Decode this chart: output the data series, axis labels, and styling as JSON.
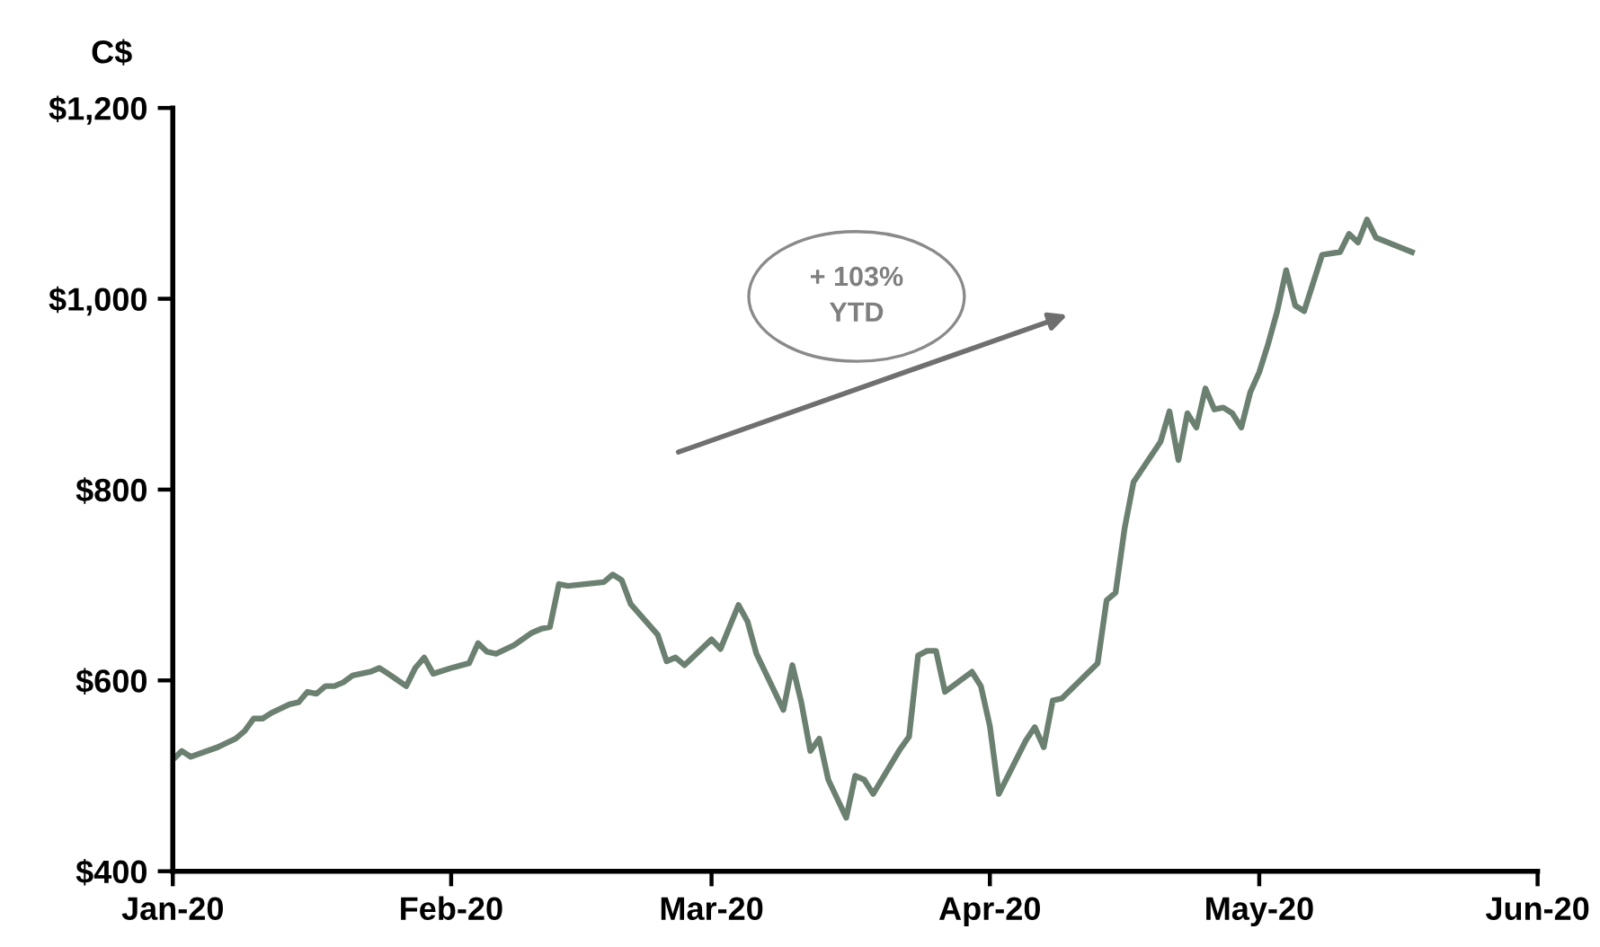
{
  "chart_data": {
    "type": "line",
    "ylabel": "C$",
    "x": [
      "2020-01-01",
      "2020-01-02",
      "2020-01-03",
      "2020-01-06",
      "2020-01-08",
      "2020-01-09",
      "2020-01-10",
      "2020-01-11",
      "2020-01-12",
      "2020-01-14",
      "2020-01-15",
      "2020-01-16",
      "2020-01-17",
      "2020-01-18",
      "2020-01-19",
      "2020-01-20",
      "2020-01-21",
      "2020-01-23",
      "2020-01-24",
      "2020-01-25",
      "2020-01-27",
      "2020-01-28",
      "2020-01-29",
      "2020-01-30",
      "2020-02-01",
      "2020-02-03",
      "2020-02-04",
      "2020-02-05",
      "2020-02-06",
      "2020-02-08",
      "2020-02-10",
      "2020-02-11",
      "2020-02-12",
      "2020-02-13",
      "2020-02-14",
      "2020-02-18",
      "2020-02-19",
      "2020-02-20",
      "2020-02-21",
      "2020-02-24",
      "2020-02-25",
      "2020-02-26",
      "2020-02-27",
      "2020-03-01",
      "2020-03-02",
      "2020-03-04",
      "2020-03-05",
      "2020-03-06",
      "2020-03-09",
      "2020-03-10",
      "2020-03-11",
      "2020-03-12",
      "2020-03-13",
      "2020-03-14",
      "2020-03-16",
      "2020-03-17",
      "2020-03-18",
      "2020-03-19",
      "2020-03-22",
      "2020-03-23",
      "2020-03-24",
      "2020-03-25",
      "2020-03-26",
      "2020-03-27",
      "2020-03-30",
      "2020-03-31",
      "2020-04-01",
      "2020-04-02",
      "2020-04-05",
      "2020-04-06",
      "2020-04-07",
      "2020-04-08",
      "2020-04-09",
      "2020-04-13",
      "2020-04-14",
      "2020-04-15",
      "2020-04-16",
      "2020-04-17",
      "2020-04-20",
      "2020-04-21",
      "2020-04-22",
      "2020-04-23",
      "2020-04-24",
      "2020-04-25",
      "2020-04-26",
      "2020-04-27",
      "2020-04-28",
      "2020-04-29",
      "2020-04-30",
      "2020-05-01",
      "2020-05-02",
      "2020-05-03",
      "2020-05-04",
      "2020-05-05",
      "2020-05-06",
      "2020-05-08",
      "2020-05-10",
      "2020-05-11",
      "2020-05-12",
      "2020-05-13",
      "2020-05-14",
      "2020-05-18"
    ],
    "series": [
      {
        "color": "#6b8070",
        "values": [
          517,
          526,
          520,
          530,
          539,
          547,
          560,
          560,
          566,
          575,
          577,
          588,
          586,
          594,
          594,
          598,
          605,
          609,
          613,
          607,
          594,
          613,
          624,
          607,
          613,
          618,
          639,
          630,
          628,
          637,
          650,
          654,
          656,
          701,
          699,
          703,
          711,
          705,
          680,
          648,
          620,
          624,
          616,
          643,
          633,
          679,
          662,
          628,
          569,
          616,
          577,
          526,
          539,
          496,
          456,
          500,
          496,
          481,
          528,
          541,
          626,
          631,
          631,
          588,
          609,
          594,
          552,
          481,
          537,
          551,
          530,
          579,
          581,
          618,
          684,
          692,
          759,
          808,
          850,
          882,
          831,
          880,
          865,
          906,
          884,
          886,
          880,
          865,
          902,
          923,
          953,
          987,
          1030,
          993,
          987,
          1046,
          1049,
          1068,
          1059,
          1083,
          1064,
          1049
        ]
      }
    ],
    "xlim": [
      "2020-01-01",
      "2020-06-01"
    ],
    "xticks": [
      {
        "value": "2020-01-01",
        "label": "Jan-20"
      },
      {
        "value": "2020-02-01",
        "label": "Feb-20"
      },
      {
        "value": "2020-03-01",
        "label": "Mar-20"
      },
      {
        "value": "2020-04-01",
        "label": "Apr-20"
      },
      {
        "value": "2020-05-01",
        "label": "May-20"
      },
      {
        "value": "2020-06-01",
        "label": "Jun-20"
      }
    ],
    "ylim": [
      400,
      1200
    ],
    "yticks": [
      {
        "value": 400,
        "label": "$400"
      },
      {
        "value": 600,
        "label": "$600"
      },
      {
        "value": 800,
        "label": "$800"
      },
      {
        "value": 1000,
        "label": "$1,000"
      },
      {
        "value": 1200,
        "label": "$1,200"
      }
    ],
    "annotations": [
      "+ 103%\nYTD"
    ],
    "marker": "none",
    "line_style": "solid"
  }
}
